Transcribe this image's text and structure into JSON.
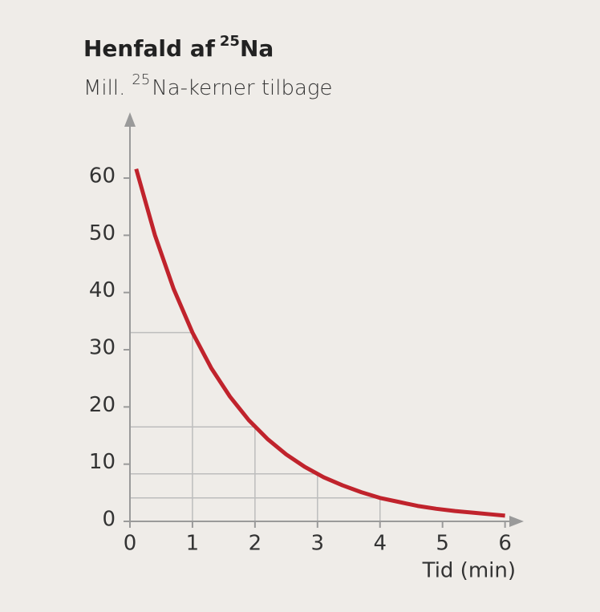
{
  "chart_data": {
    "type": "line",
    "title": [
      "Henfald af",
      "25",
      "Na"
    ],
    "y_label": [
      "Mill.",
      "25",
      "Na-kerner tilbage"
    ],
    "x_label": "Tid (min)",
    "x": [
      0.1,
      0.4,
      0.7,
      1.0,
      1.3,
      1.6,
      1.9,
      2.2,
      2.5,
      2.8,
      3.1,
      3.4,
      3.7,
      4.0,
      4.3,
      4.6,
      4.9,
      5.2,
      5.5,
      5.8,
      6.0
    ],
    "series": [
      {
        "color": "#c0232c",
        "values": [
          61.6,
          50.0,
          40.6,
          33.0,
          26.8,
          21.8,
          17.7,
          14.4,
          11.7,
          9.5,
          7.7,
          6.3,
          5.1,
          4.1,
          3.4,
          2.7,
          2.2,
          1.8,
          1.5,
          1.2,
          1.0
        ]
      }
    ],
    "guides": {
      "x": [
        1,
        2,
        3,
        4
      ],
      "values": [
        33,
        16.5,
        8.3,
        4.1
      ],
      "color": "#bdbdbd"
    },
    "xlim": [
      0,
      6.3
    ],
    "ylim": [
      0,
      71.5
    ],
    "xticks": [
      0,
      1,
      2,
      3,
      4,
      5,
      6
    ],
    "yticks": [
      0,
      10,
      20,
      30,
      40,
      50,
      60
    ]
  }
}
